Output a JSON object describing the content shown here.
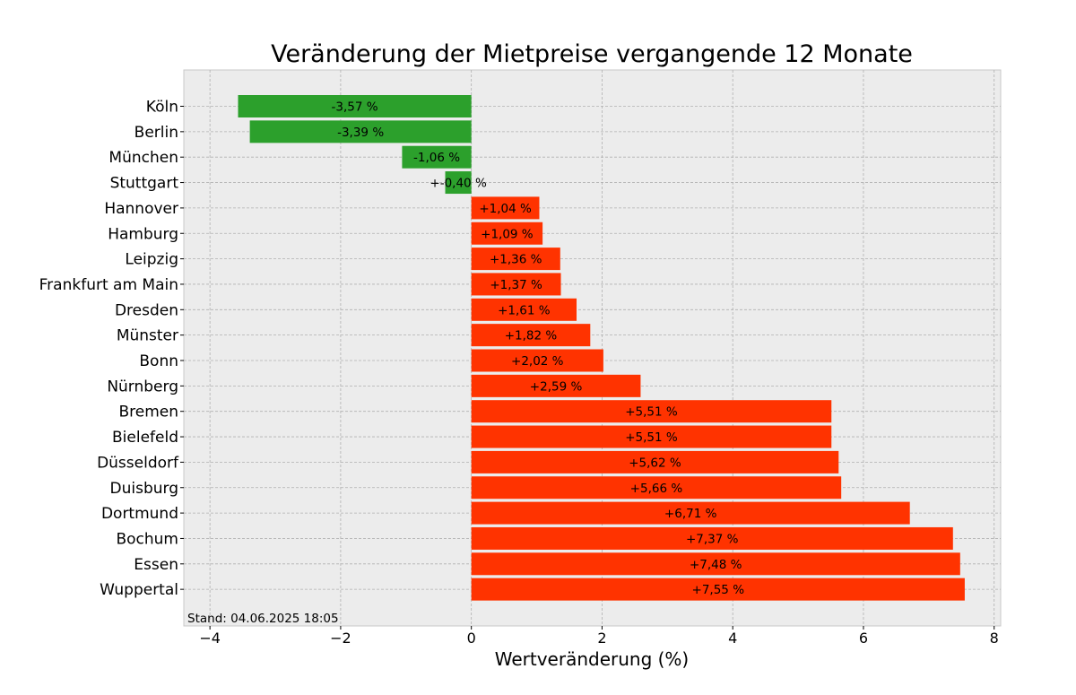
{
  "chart_data": {
    "type": "bar",
    "orientation": "horizontal",
    "title": "Veränderung der Mietpreise vergangende 12 Monate",
    "xlabel": "Wertveränderung (%)",
    "ylabel": "",
    "xlim": [
      -4.4,
      8.1
    ],
    "xticks": [
      -4,
      -2,
      0,
      2,
      4,
      6,
      8
    ],
    "xtick_labels": [
      "−4",
      "−2",
      "0",
      "2",
      "4",
      "6",
      "8"
    ],
    "grid": true,
    "categories": [
      "Köln",
      "Berlin",
      "München",
      "Stuttgart",
      "Hannover",
      "Hamburg",
      "Leipzig",
      "Frankfurt am Main",
      "Dresden",
      "Münster",
      "Bonn",
      "Nürnberg",
      "Bremen",
      "Bielefeld",
      "Düsseldorf",
      "Duisburg",
      "Dortmund",
      "Bochum",
      "Essen",
      "Wuppertal"
    ],
    "values": [
      -3.57,
      -3.39,
      -1.06,
      -0.4,
      1.04,
      1.09,
      1.36,
      1.37,
      1.61,
      1.82,
      2.02,
      2.59,
      5.51,
      5.51,
      5.62,
      5.66,
      6.71,
      7.37,
      7.48,
      7.55
    ],
    "value_labels": [
      "-3,57 %",
      "-3,39 %",
      "-1,06 %",
      "+-0,40 %",
      "+1,04 %",
      "+1,09 %",
      "+1,36 %",
      "+1,37 %",
      "+1,61 %",
      "+1,82 %",
      "+2,02 %",
      "+2,59 %",
      "+5,51 %",
      "+5,51 %",
      "+5,62 %",
      "+5,66 %",
      "+6,71 %",
      "+7,37 %",
      "+7,48 %",
      "+7,55 %"
    ],
    "annotation": "Stand: 04.06.2025 18:05",
    "colors": {
      "negative": "#2ca02c",
      "positive": "#ff3300",
      "plot_background": "#ececec",
      "grid": "#b0b0b0"
    }
  }
}
